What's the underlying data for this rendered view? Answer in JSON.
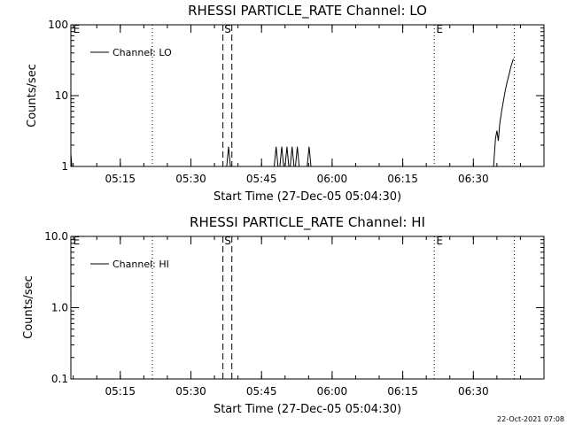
{
  "timestamp": "22-Oct-2021 07:08",
  "chart_data": [
    {
      "type": "line",
      "title": "RHESSI PARTICLE_RATE Channel: LO",
      "xlabel": "Start Time (27-Dec-05 05:04:30)",
      "ylabel": "Counts/sec",
      "y_scale": "log",
      "ylim": [
        1,
        100
      ],
      "xlim": [
        0,
        100.5
      ],
      "x_ticks": [
        {
          "value": 10.5,
          "label": "05:15"
        },
        {
          "value": 25.5,
          "label": "05:30"
        },
        {
          "value": 40.5,
          "label": "05:45"
        },
        {
          "value": 55.5,
          "label": "06:00"
        },
        {
          "value": 70.5,
          "label": "06:15"
        },
        {
          "value": 85.5,
          "label": "06:30"
        }
      ],
      "y_ticks": [
        {
          "value": 1,
          "label": "1"
        },
        {
          "value": 10,
          "label": "10"
        },
        {
          "value": 100,
          "label": "100"
        }
      ],
      "legend": {
        "label": "Channel: LO",
        "position": "top-left"
      },
      "vlines": [
        {
          "x": 17.3,
          "style": "dotted"
        },
        {
          "x": 32.3,
          "style": "dashed"
        },
        {
          "x": 34.2,
          "style": "dashed"
        },
        {
          "x": 77.2,
          "style": "dotted"
        },
        {
          "x": 94.2,
          "style": "dotted"
        }
      ],
      "flags": [
        {
          "x": 0.5,
          "label": "E"
        },
        {
          "x": 32.6,
          "label": "S"
        },
        {
          "x": 77.6,
          "label": "E"
        }
      ],
      "series": [
        {
          "name": "Channel: LO",
          "segments": [
            [
              [
                0,
                1.5
              ],
              [
                0.2,
                1
              ]
            ],
            [
              [
                33.1,
                1
              ],
              [
                33.5,
                1.9
              ],
              [
                33.9,
                1
              ]
            ],
            [
              [
                43.2,
                1
              ],
              [
                43.6,
                1.9
              ],
              [
                44,
                1
              ]
            ],
            [
              [
                44.4,
                1
              ],
              [
                44.8,
                1.9
              ],
              [
                45.2,
                1
              ]
            ],
            [
              [
                45.5,
                1
              ],
              [
                45.9,
                1.9
              ],
              [
                46.3,
                1
              ]
            ],
            [
              [
                46.6,
                1
              ],
              [
                47,
                1.9
              ],
              [
                47.4,
                1
              ]
            ],
            [
              [
                47.7,
                1
              ],
              [
                48.1,
                1.9
              ],
              [
                48.5,
                1
              ]
            ],
            [
              [
                50.2,
                1
              ],
              [
                50.6,
                1.9
              ],
              [
                51,
                1
              ]
            ],
            [
              [
                89.8,
                1
              ],
              [
                90.2,
                2.5
              ],
              [
                90.5,
                3.2
              ],
              [
                90.8,
                2.3
              ],
              [
                91.1,
                4
              ],
              [
                91.5,
                6
              ],
              [
                91.9,
                8.5
              ],
              [
                92.3,
                12
              ],
              [
                92.7,
                16
              ],
              [
                93.1,
                20
              ],
              [
                93.5,
                26
              ],
              [
                94,
                33
              ]
            ]
          ]
        }
      ]
    },
    {
      "type": "line",
      "title": "RHESSI PARTICLE_RATE Channel: HI",
      "xlabel": "Start Time (27-Dec-05 05:04:30)",
      "ylabel": "Counts/sec",
      "y_scale": "log",
      "ylim": [
        0.1,
        10
      ],
      "xlim": [
        0,
        100.5
      ],
      "x_ticks": [
        {
          "value": 10.5,
          "label": "05:15"
        },
        {
          "value": 25.5,
          "label": "05:30"
        },
        {
          "value": 40.5,
          "label": "05:45"
        },
        {
          "value": 55.5,
          "label": "06:00"
        },
        {
          "value": 70.5,
          "label": "06:15"
        },
        {
          "value": 85.5,
          "label": "06:30"
        }
      ],
      "y_ticks": [
        {
          "value": 0.1,
          "label": "0.1"
        },
        {
          "value": 1,
          "label": "1.0"
        },
        {
          "value": 10,
          "label": "10.0"
        }
      ],
      "legend": {
        "label": "Channel: HI",
        "position": "top-left"
      },
      "vlines": [
        {
          "x": 17.3,
          "style": "dotted"
        },
        {
          "x": 32.3,
          "style": "dashed"
        },
        {
          "x": 34.2,
          "style": "dashed"
        },
        {
          "x": 77.2,
          "style": "dotted"
        },
        {
          "x": 94.2,
          "style": "dotted"
        }
      ],
      "flags": [
        {
          "x": 0.5,
          "label": "E"
        },
        {
          "x": 32.6,
          "label": "S"
        },
        {
          "x": 77.6,
          "label": "E"
        }
      ],
      "series": [
        {
          "name": "Channel: HI",
          "segments": []
        }
      ]
    }
  ]
}
